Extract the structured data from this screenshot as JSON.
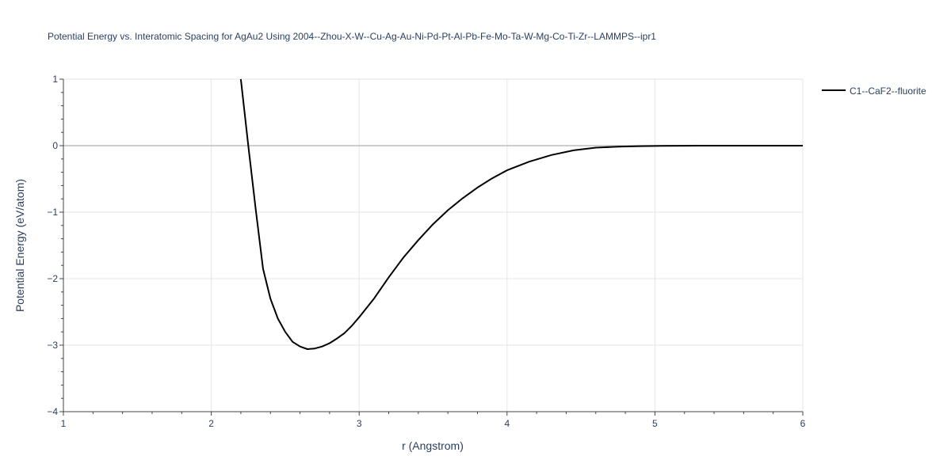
{
  "chart_data": {
    "type": "line",
    "title": "Potential Energy vs. Interatomic Spacing for AgAu2 Using 2004--Zhou-X-W--Cu-Ag-Au-Ni-Pd-Pt-Al-Pb-Fe-Mo-Ta-W-Mg-Co-Ti-Zr--LAMMPS--ipr1",
    "xlabel": "r (Angstrom)",
    "ylabel": "Potential Energy (eV/atom)",
    "xlim": [
      1,
      6
    ],
    "ylim": [
      -4,
      1
    ],
    "x_ticks": [
      1,
      2,
      3,
      4,
      5,
      6
    ],
    "x_tick_labels": [
      "1",
      "2",
      "3",
      "4",
      "5",
      "6"
    ],
    "y_ticks": [
      1,
      0,
      -1,
      -2,
      -3,
      -4
    ],
    "y_tick_labels": [
      "1",
      "0",
      "−1",
      "−2",
      "−3",
      "−4"
    ],
    "grid": true,
    "legend_position": "top-right",
    "series": [
      {
        "name": "C1--CaF2--fluorite",
        "color": "#000000",
        "x": [
          2.2,
          2.25,
          2.3,
          2.35,
          2.4,
          2.45,
          2.5,
          2.55,
          2.6,
          2.65,
          2.7,
          2.75,
          2.8,
          2.85,
          2.9,
          2.95,
          3.0,
          3.1,
          3.2,
          3.3,
          3.4,
          3.5,
          3.6,
          3.7,
          3.8,
          3.9,
          4.0,
          4.15,
          4.3,
          4.45,
          4.6,
          4.75,
          4.9,
          5.05,
          5.2,
          5.3,
          5.45,
          5.6,
          5.8,
          6.0
        ],
        "y": [
          1.0,
          0.0,
          -0.95,
          -1.85,
          -2.3,
          -2.6,
          -2.8,
          -2.95,
          -3.02,
          -3.06,
          -3.05,
          -3.02,
          -2.97,
          -2.9,
          -2.82,
          -2.71,
          -2.58,
          -2.3,
          -1.98,
          -1.68,
          -1.42,
          -1.18,
          -0.97,
          -0.79,
          -0.63,
          -0.49,
          -0.37,
          -0.24,
          -0.14,
          -0.07,
          -0.03,
          -0.015,
          -0.007,
          -0.003,
          -0.001,
          0.0,
          0.0,
          0.0,
          0.0,
          0.0
        ]
      }
    ]
  }
}
